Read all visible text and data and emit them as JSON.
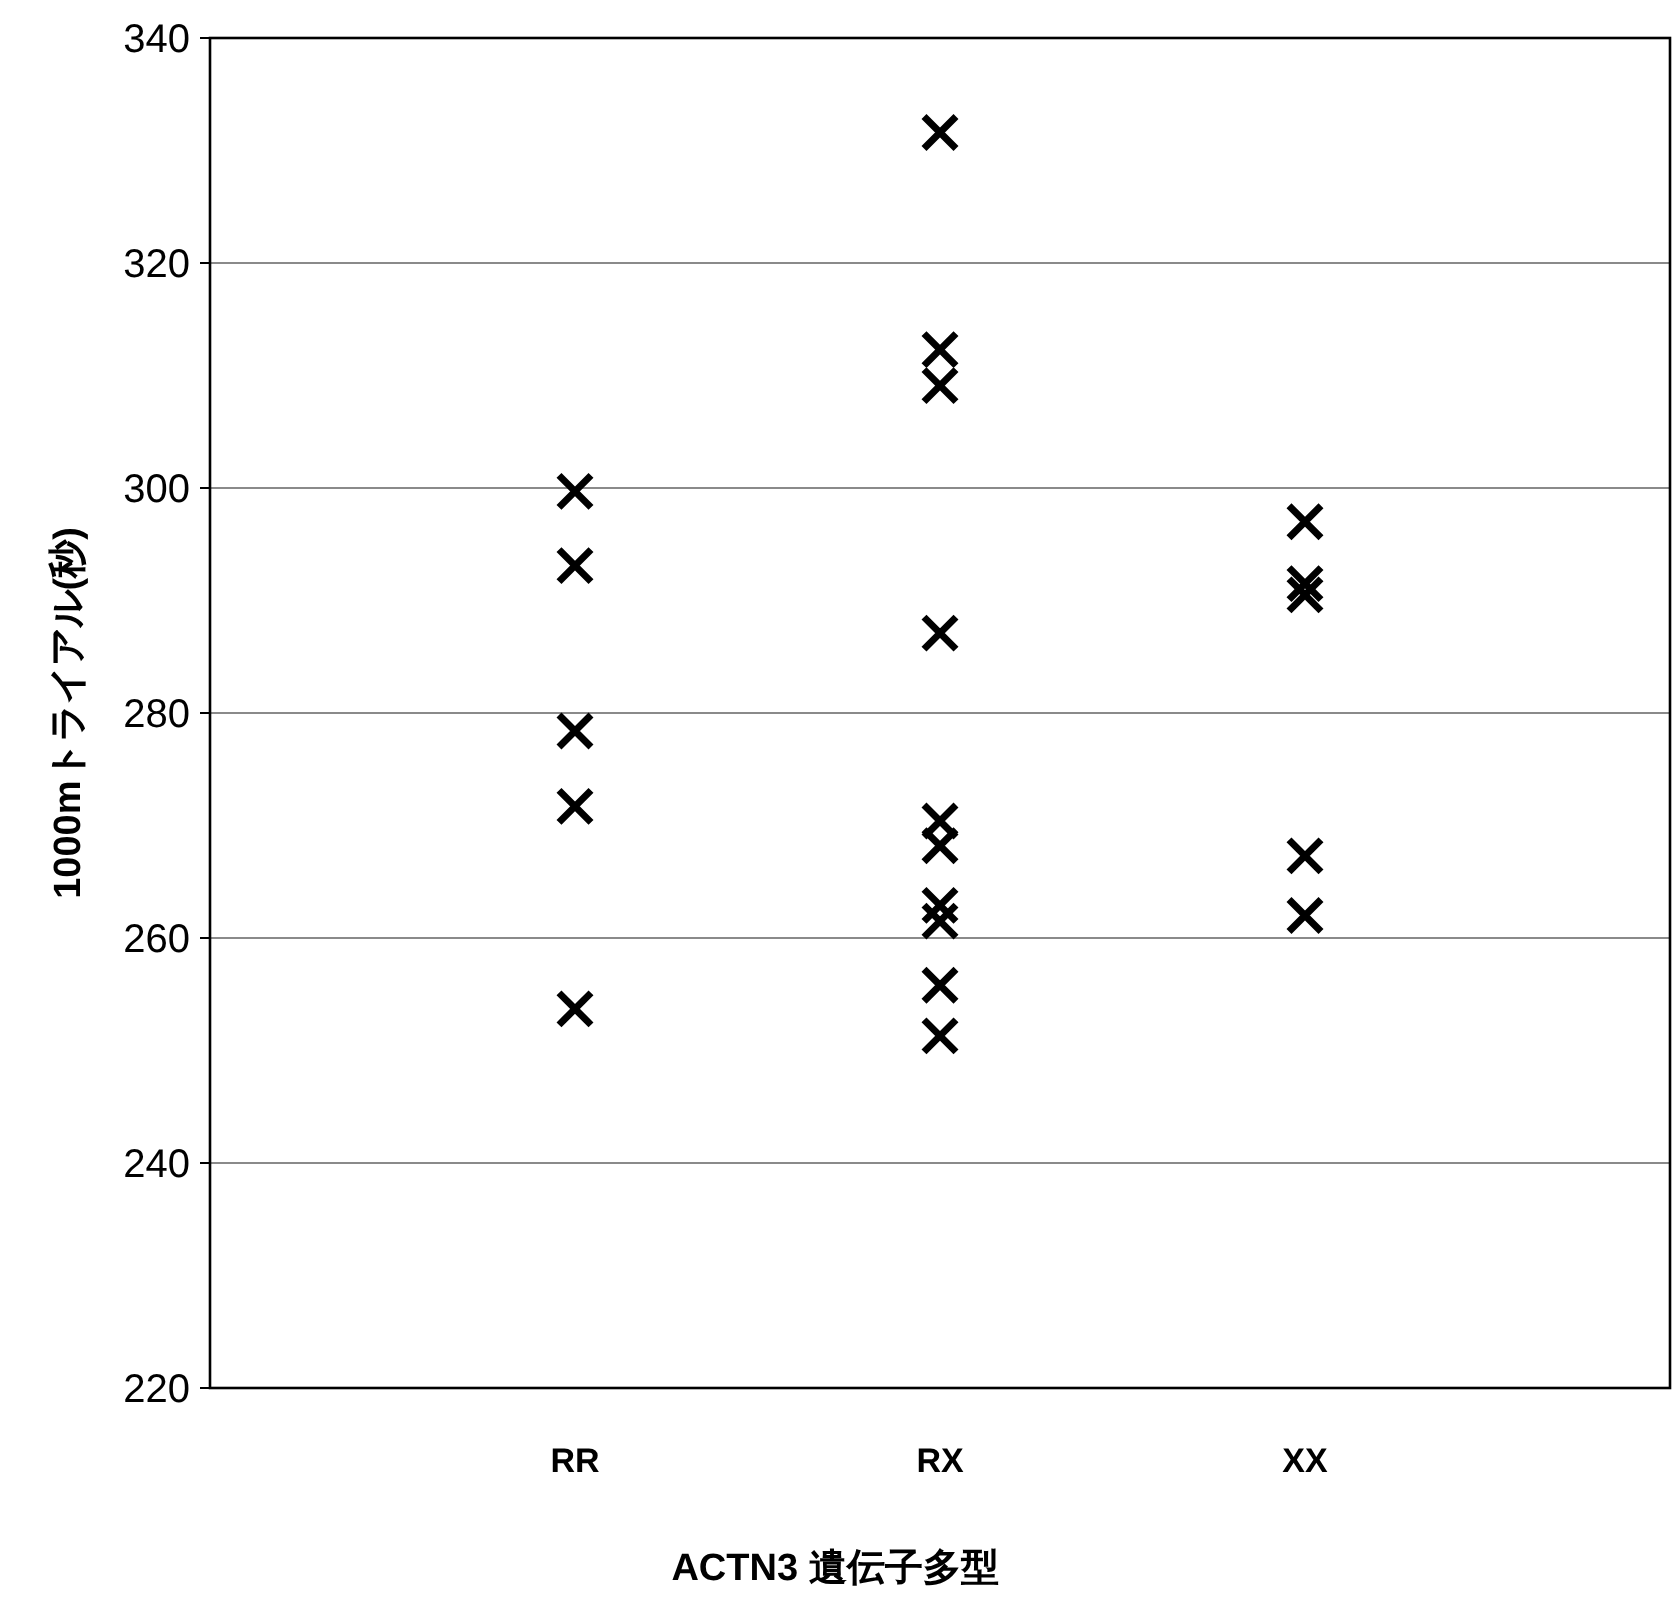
{
  "chart_data": {
    "type": "scatter",
    "xlabel": "ACTN3 遺伝子多型",
    "ylabel": "1000mトライアル(秒)",
    "categories": [
      "RR",
      "RX",
      "XX"
    ],
    "series": [
      {
        "color": "#000000",
        "x": [
          "RR",
          "RR",
          "RR",
          "RR",
          "RR"
        ],
        "values": [
          299.7,
          293.1,
          278.4,
          271.7,
          253.7
        ]
      },
      {
        "color": "#000000",
        "x": [
          "RX",
          "RX",
          "RX",
          "RX",
          "RX",
          "RX",
          "RX",
          "RX",
          "RX",
          "RX"
        ],
        "values": [
          331.6,
          312.3,
          309.1,
          287.1,
          270.4,
          268.2,
          262.9,
          261.5,
          255.8,
          251.3
        ]
      },
      {
        "color": "#000000",
        "x": [
          "XX",
          "XX",
          "XX",
          "XX",
          "XX"
        ],
        "values": [
          297.0,
          291.5,
          290.5,
          267.3,
          262.0
        ]
      }
    ],
    "ylim": [
      220,
      340
    ],
    "yticks": [
      220,
      240,
      260,
      280,
      300,
      320,
      340
    ],
    "grid": "y",
    "marker": "cross"
  }
}
